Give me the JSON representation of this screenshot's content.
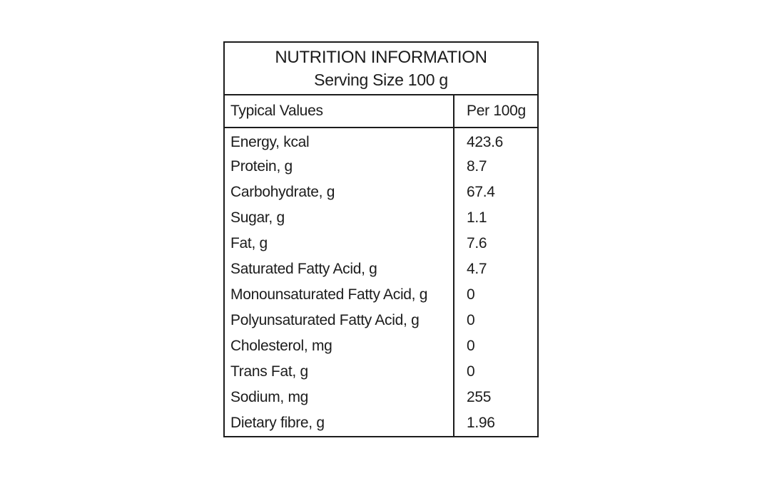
{
  "nutrition": {
    "title": "NUTRITION INFORMATION",
    "subtitle": "Serving Size 100 g",
    "columns": {
      "label_header": "Typical Values",
      "value_header": "Per 100g"
    },
    "rows": [
      {
        "label": "Energy, kcal",
        "value": "423.6"
      },
      {
        "label": "Protein, g",
        "value": "8.7"
      },
      {
        "label": "Carbohydrate, g",
        "value": "67.4"
      },
      {
        "label": "Sugar, g",
        "value": "1.1"
      },
      {
        "label": "Fat, g",
        "value": "7.6"
      },
      {
        "label": "Saturated Fatty Acid, g",
        "value": "4.7"
      },
      {
        "label": "Monounsaturated Fatty Acid, g",
        "value": "0"
      },
      {
        "label": "Polyunsaturated Fatty Acid, g",
        "value": "0"
      },
      {
        "label": "Cholesterol, mg",
        "value": "0"
      },
      {
        "label": "Trans Fat, g",
        "value": "0"
      },
      {
        "label": "Sodium, mg",
        "value": "255"
      },
      {
        "label": "Dietary fibre, g",
        "value": "1.96"
      }
    ],
    "colors": {
      "border": "#1c1c1c",
      "text": "#1c1c1c",
      "background": "#ffffff"
    }
  }
}
